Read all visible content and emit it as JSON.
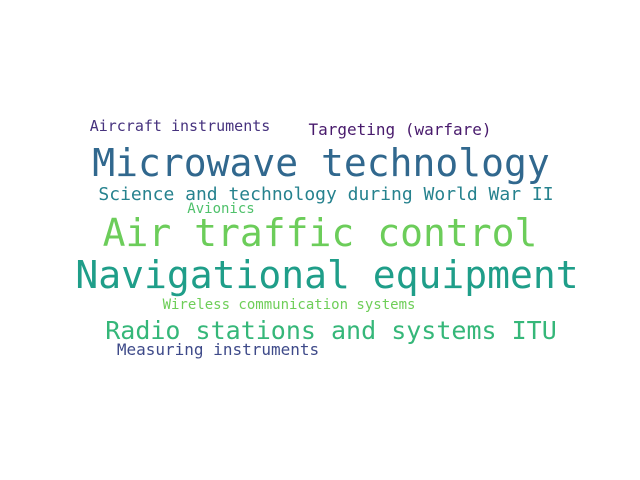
{
  "words": [
    {
      "text": "Aircraft instruments",
      "color": "#46327e"
    },
    {
      "text": "Targeting (warfare)",
      "color": "#481a6c"
    },
    {
      "text": "Microwave technology",
      "color": "#31688e"
    },
    {
      "text": "Science and technology during World War II",
      "color": "#26828e"
    },
    {
      "text": "Avionics",
      "color": "#4fc16b"
    },
    {
      "text": "Air traffic control",
      "color": "#6ccd5a"
    },
    {
      "text": "Navigational equipment",
      "color": "#1f9e89"
    },
    {
      "text": "Wireless communication systems",
      "color": "#6ece58"
    },
    {
      "text": "Radio stations and systems ITU",
      "color": "#35b779"
    },
    {
      "text": "Measuring instruments",
      "color": "#3e4a89"
    }
  ]
}
